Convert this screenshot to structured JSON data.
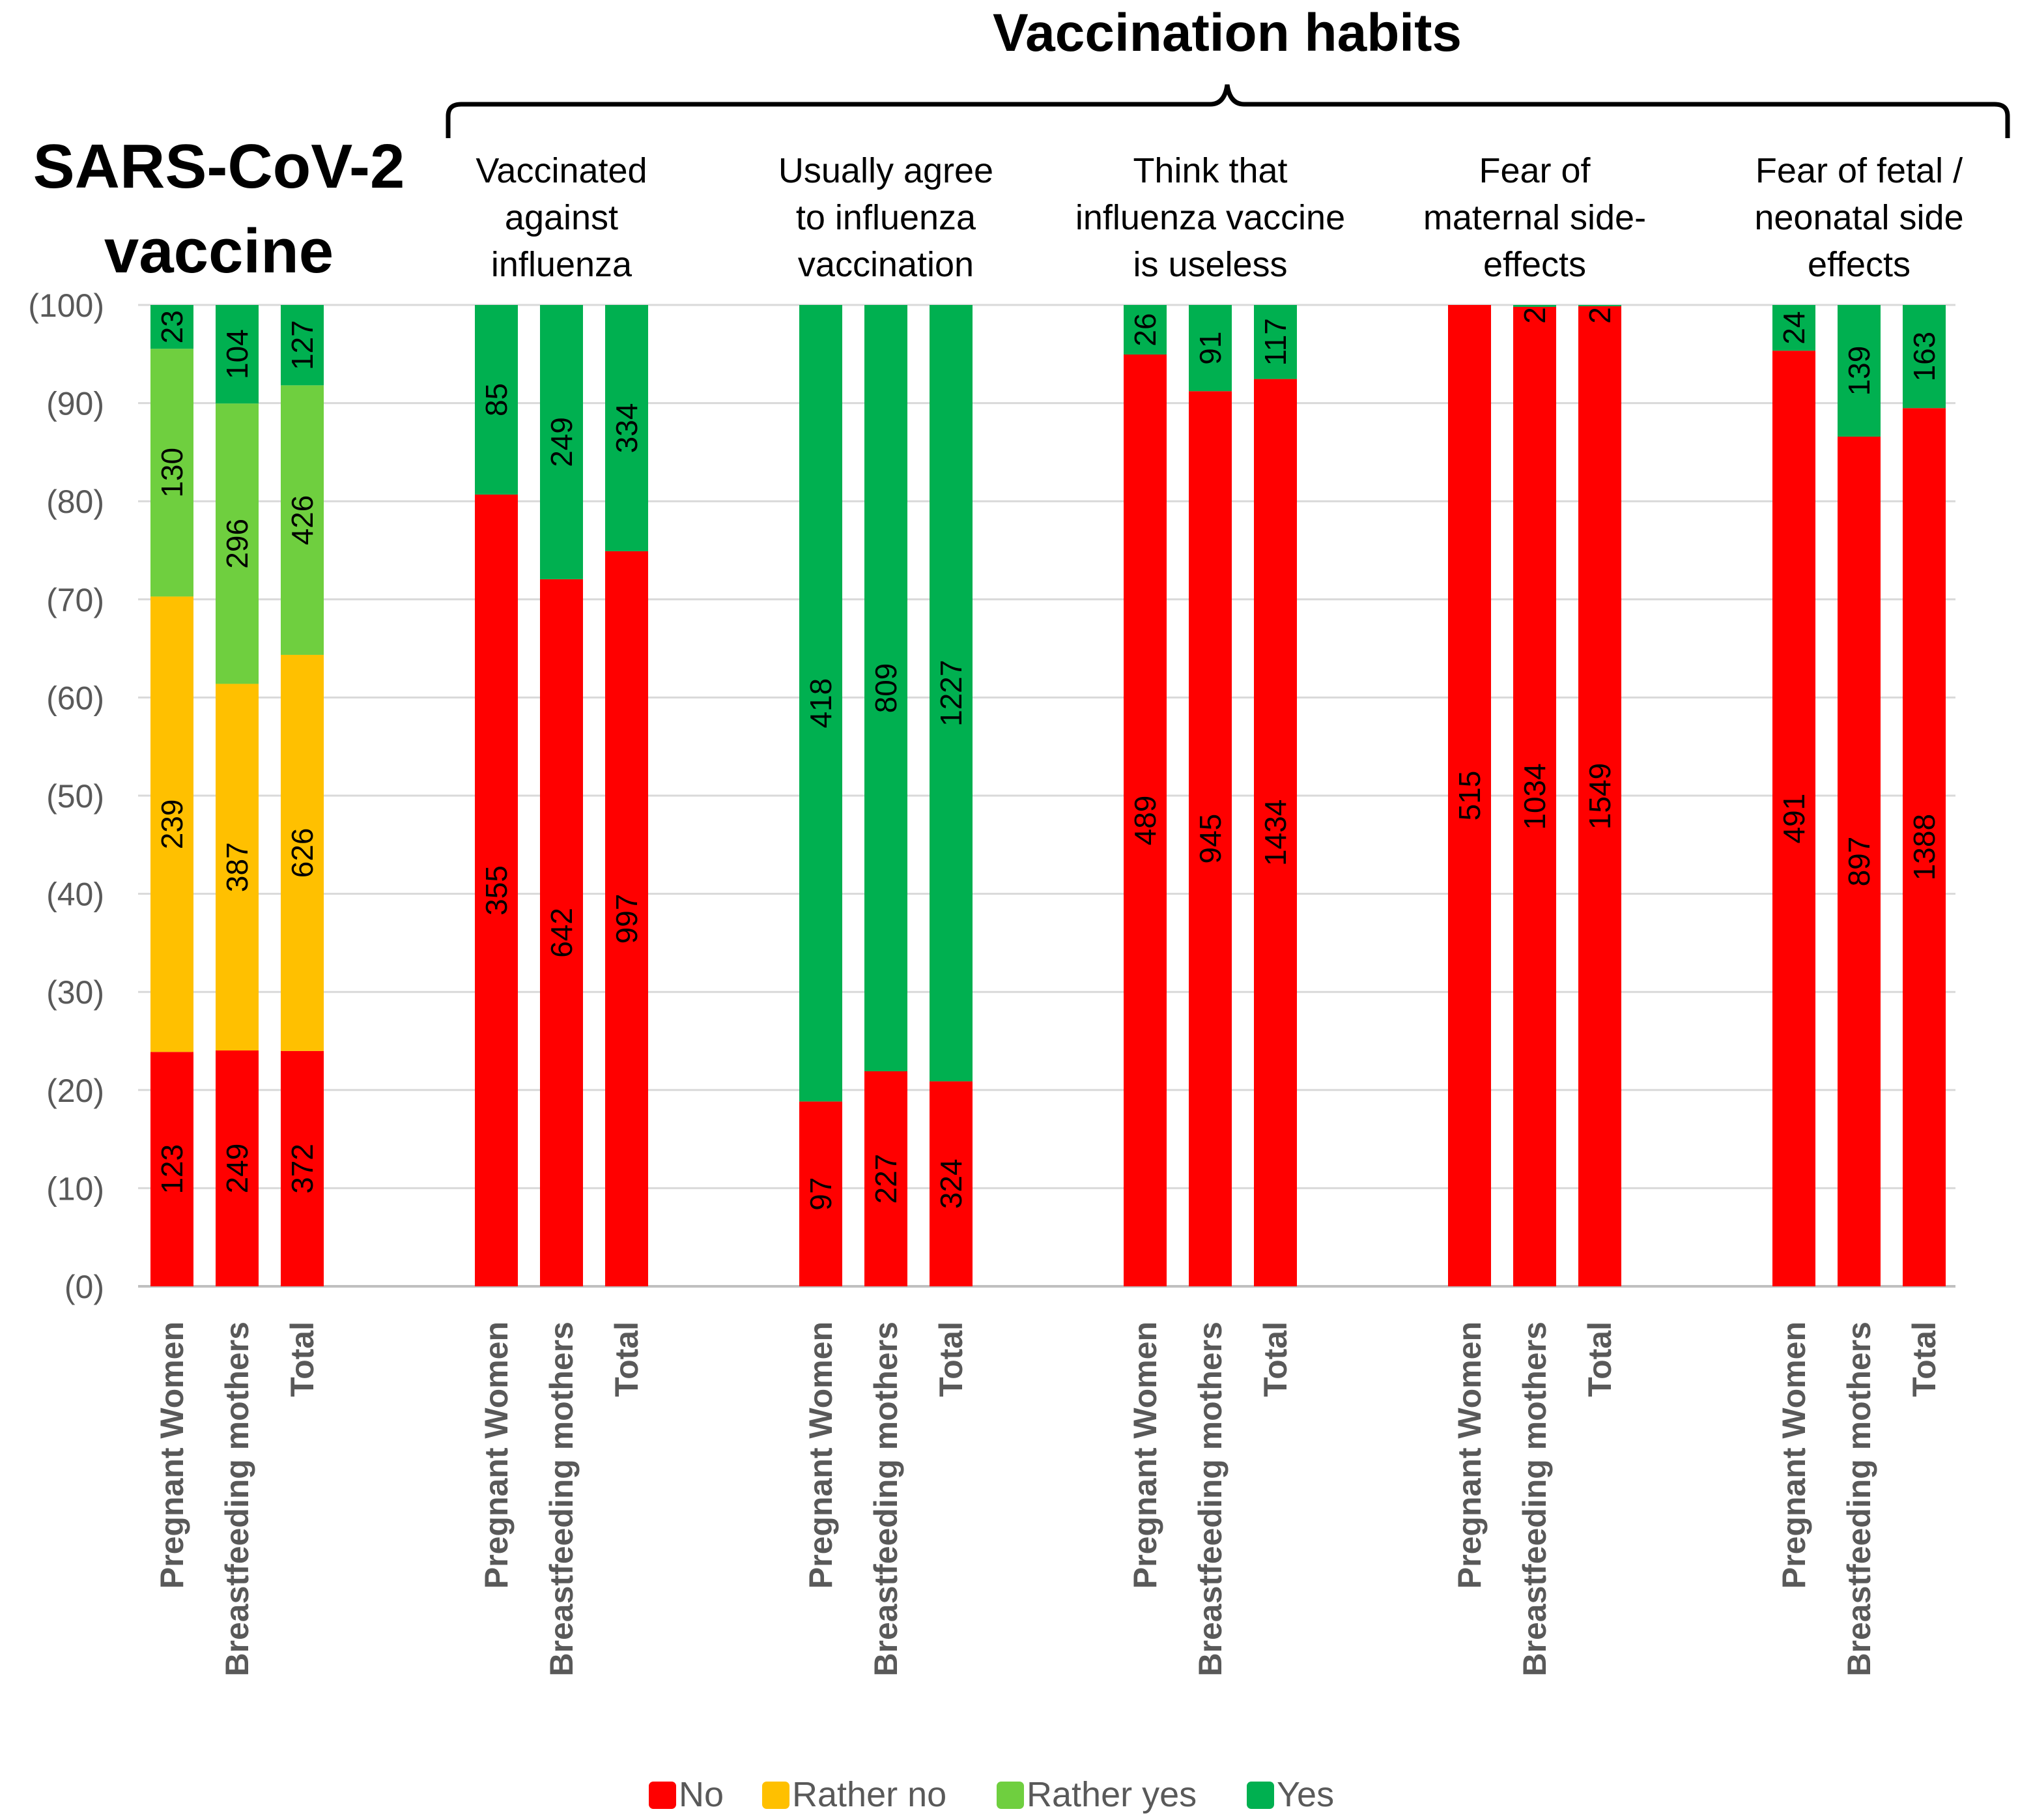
{
  "chart_data": {
    "type": "bar",
    "stacked": true,
    "normalized_percent": true,
    "headers": {
      "left": [
        "SARS-CoV-2",
        "vaccine"
      ],
      "brace": "Vaccination habits"
    },
    "y_ticks": [
      "(100)",
      "(90)",
      "(80)",
      "(70)",
      "(60)",
      "(50)",
      "(40)",
      "(30)",
      "(20)",
      "(10)",
      "(0)"
    ],
    "ylim": [
      0,
      100
    ],
    "categories": [
      "Pregnant Women",
      "Breastfeeding mothers",
      "Total"
    ],
    "series": [
      {
        "key": "no",
        "name": "No",
        "color": "#ff0000"
      },
      {
        "key": "rather_no",
        "name": "Rather no",
        "color": "#ffc000"
      },
      {
        "key": "rather_yes",
        "name": "Rather yes",
        "color": "#6fcf3f"
      },
      {
        "key": "yes",
        "name": "Yes",
        "color": "#00b050"
      }
    ],
    "groups": [
      {
        "title": [],
        "bars": [
          {
            "no": 123,
            "rather_no": 239,
            "rather_yes": 130,
            "yes": 23
          },
          {
            "no": 249,
            "rather_no": 387,
            "rather_yes": 296,
            "yes": 104
          },
          {
            "no": 372,
            "rather_no": 626,
            "rather_yes": 426,
            "yes": 127
          }
        ]
      },
      {
        "title": [
          "Vaccinated",
          "against",
          "influenza"
        ],
        "bars": [
          {
            "no": 355,
            "yes": 85
          },
          {
            "no": 642,
            "yes": 249
          },
          {
            "no": 997,
            "yes": 334
          }
        ]
      },
      {
        "title": [
          "Usually agree",
          "to influenza",
          "vaccination"
        ],
        "bars": [
          {
            "no": 97,
            "yes": 418
          },
          {
            "no": 227,
            "yes": 809
          },
          {
            "no": 324,
            "yes": 1227
          }
        ]
      },
      {
        "title": [
          "Think that",
          "influenza vaccine",
          "is useless"
        ],
        "bars": [
          {
            "no": 489,
            "yes": 26
          },
          {
            "no": 945,
            "yes": 91
          },
          {
            "no": 1434,
            "yes": 117
          }
        ]
      },
      {
        "title": [
          "Fear of",
          "maternal side-",
          "effects"
        ],
        "bars": [
          {
            "no": 515,
            "yes": 0
          },
          {
            "no": 1034,
            "yes": 2
          },
          {
            "no": 1549,
            "yes": 2
          }
        ]
      },
      {
        "title": [
          "Fear of fetal /",
          "neonatal side",
          "effects"
        ],
        "bars": [
          {
            "no": 491,
            "yes": 24
          },
          {
            "no": 897,
            "yes": 139
          },
          {
            "no": 1388,
            "yes": 163
          }
        ]
      }
    ]
  }
}
